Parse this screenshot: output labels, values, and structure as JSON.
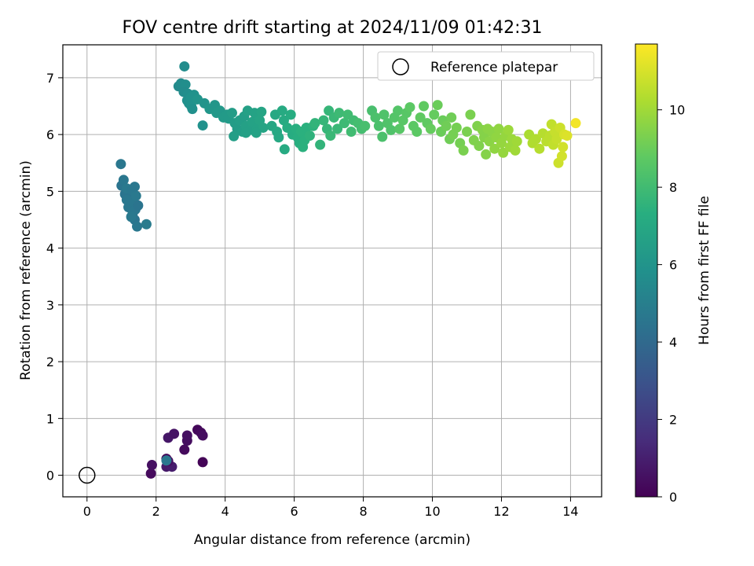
{
  "chart_data": {
    "type": "scatter",
    "title": "FOV centre drift starting at 2024/11/09 01:42:31",
    "xlabel": "Angular distance from reference (arcmin)",
    "ylabel": "Rotation from reference (arcmin)",
    "xlim": [
      -0.7,
      14.9
    ],
    "ylim": [
      -0.38,
      7.58
    ],
    "xticks": [
      0,
      2,
      4,
      6,
      8,
      10,
      12,
      14
    ],
    "yticks": [
      0,
      1,
      2,
      3,
      4,
      5,
      6,
      7
    ],
    "grid": true,
    "colormap": "viridis",
    "colorbar": {
      "label": "Hours from first FF file",
      "range": [
        0,
        11.7
      ],
      "ticks": [
        0,
        2,
        4,
        6,
        8,
        10
      ]
    },
    "legend": {
      "position": "top-right",
      "entries": [
        "Reference platepar"
      ]
    },
    "reference_point": {
      "x": 0,
      "y": 0
    },
    "points": [
      [
        1.85,
        0.03,
        0.3
      ],
      [
        1.88,
        0.18,
        0.5
      ],
      [
        2.3,
        0.15,
        0.8
      ],
      [
        2.46,
        0.15,
        0.9
      ],
      [
        2.3,
        0.29,
        0.2
      ],
      [
        2.35,
        0.25,
        0.4
      ],
      [
        2.35,
        0.66,
        0.7
      ],
      [
        2.52,
        0.73,
        0.6
      ],
      [
        2.82,
        0.45,
        0.3
      ],
      [
        2.9,
        0.61,
        0.4
      ],
      [
        2.9,
        0.7,
        0.5
      ],
      [
        3.2,
        0.8,
        0.2
      ],
      [
        3.3,
        0.75,
        0.3
      ],
      [
        3.35,
        0.7,
        0.4
      ],
      [
        3.35,
        0.23,
        0.1
      ],
      [
        2.3,
        0.26,
        4.6
      ],
      [
        0.98,
        5.48,
        4.6
      ],
      [
        1.0,
        5.1,
        4.5
      ],
      [
        1.06,
        5.2,
        4.6
      ],
      [
        1.1,
        4.95,
        4.5
      ],
      [
        1.15,
        5.05,
        4.7
      ],
      [
        1.2,
        4.72,
        4.6
      ],
      [
        1.25,
        4.88,
        4.5
      ],
      [
        1.3,
        5.02,
        4.6
      ],
      [
        1.32,
        4.6,
        4.7
      ],
      [
        1.35,
        4.8,
        4.6
      ],
      [
        1.38,
        4.5,
        4.5
      ],
      [
        1.4,
        4.68,
        4.6
      ],
      [
        1.42,
        4.92,
        4.7
      ],
      [
        1.45,
        4.38,
        4.6
      ],
      [
        1.48,
        4.75,
        4.5
      ],
      [
        1.38,
        5.08,
        4.6
      ],
      [
        1.28,
        4.55,
        4.7
      ],
      [
        1.15,
        4.85,
        4.6
      ],
      [
        1.72,
        4.42,
        4.8
      ],
      [
        2.65,
        6.85,
        5.5
      ],
      [
        2.72,
        6.9,
        5.6
      ],
      [
        2.82,
        7.2,
        5.6
      ],
      [
        2.85,
        6.88,
        5.7
      ],
      [
        2.8,
        6.75,
        5.6
      ],
      [
        2.9,
        6.6,
        5.8
      ],
      [
        2.92,
        6.72,
        5.7
      ],
      [
        2.95,
        6.55,
        5.8
      ],
      [
        3.0,
        6.65,
        5.9
      ],
      [
        3.02,
        6.5,
        5.9
      ],
      [
        3.05,
        6.45,
        5.8
      ],
      [
        3.1,
        6.7,
        5.9
      ],
      [
        3.2,
        6.62,
        6.0
      ],
      [
        3.35,
        6.16,
        5.9
      ],
      [
        3.4,
        6.55,
        6.0
      ],
      [
        3.55,
        6.45,
        6.1
      ],
      [
        3.7,
        6.52,
        6.1
      ],
      [
        3.75,
        6.38,
        6.2
      ],
      [
        3.85,
        6.42,
        6.2
      ],
      [
        3.95,
        6.3,
        6.3
      ],
      [
        4.05,
        6.35,
        6.3
      ],
      [
        4.1,
        6.28,
        6.3
      ],
      [
        4.2,
        6.38,
        6.4
      ],
      [
        4.28,
        6.2,
        6.4
      ],
      [
        4.35,
        6.1,
        6.4
      ],
      [
        4.42,
        6.25,
        6.5
      ],
      [
        4.5,
        6.05,
        6.5
      ],
      [
        4.55,
        6.32,
        6.5
      ],
      [
        4.6,
        6.15,
        6.6
      ],
      [
        4.65,
        6.42,
        6.6
      ],
      [
        4.7,
        6.08,
        6.6
      ],
      [
        4.78,
        6.22,
        6.7
      ],
      [
        4.85,
        6.38,
        6.7
      ],
      [
        4.92,
        6.1,
        6.7
      ],
      [
        5.0,
        6.25,
        6.8
      ],
      [
        5.05,
        6.4,
        6.8
      ],
      [
        5.1,
        6.12,
        6.8
      ],
      [
        4.25,
        5.97,
        6.5
      ],
      [
        4.6,
        6.03,
        6.6
      ],
      [
        4.9,
        6.03,
        6.7
      ],
      [
        5.35,
        6.15,
        6.9
      ],
      [
        5.45,
        6.35,
        7.0
      ],
      [
        5.5,
        6.05,
        7.0
      ],
      [
        5.55,
        5.95,
        7.0
      ],
      [
        5.65,
        6.42,
        7.1
      ],
      [
        5.7,
        6.25,
        7.1
      ],
      [
        5.72,
        5.74,
        7.1
      ],
      [
        5.8,
        6.12,
        7.2
      ],
      [
        5.9,
        6.35,
        7.2
      ],
      [
        5.95,
        6.0,
        7.2
      ],
      [
        6.05,
        6.1,
        7.3
      ],
      [
        6.1,
        5.95,
        7.3
      ],
      [
        6.15,
        5.85,
        7.3
      ],
      [
        6.2,
        6.05,
        7.4
      ],
      [
        6.25,
        5.78,
        7.4
      ],
      [
        6.3,
        5.9,
        7.4
      ],
      [
        6.35,
        6.12,
        7.4
      ],
      [
        6.45,
        5.98,
        7.5
      ],
      [
        6.55,
        6.15,
        7.5
      ],
      [
        6.6,
        6.2,
        7.6
      ],
      [
        6.75,
        5.82,
        7.6
      ],
      [
        6.85,
        6.25,
        7.7
      ],
      [
        6.95,
        6.1,
        7.7
      ],
      [
        7.0,
        6.42,
        7.7
      ],
      [
        7.05,
        5.98,
        7.8
      ],
      [
        7.15,
        6.3,
        7.8
      ],
      [
        7.25,
        6.1,
        7.8
      ],
      [
        7.3,
        6.38,
        7.9
      ],
      [
        7.45,
        6.2,
        7.9
      ],
      [
        7.55,
        6.35,
        8.0
      ],
      [
        7.65,
        6.05,
        8.0
      ],
      [
        7.72,
        6.25,
        8.0
      ],
      [
        7.85,
        6.2,
        8.1
      ],
      [
        7.95,
        6.1,
        8.1
      ],
      [
        8.05,
        6.15,
        8.2
      ],
      [
        8.25,
        6.42,
        8.2
      ],
      [
        8.35,
        6.3,
        8.3
      ],
      [
        8.45,
        6.15,
        8.3
      ],
      [
        8.55,
        5.96,
        8.3
      ],
      [
        8.6,
        6.35,
        8.4
      ],
      [
        8.7,
        6.2,
        8.4
      ],
      [
        8.8,
        6.08,
        8.4
      ],
      [
        8.9,
        6.3,
        8.5
      ],
      [
        9.0,
        6.42,
        8.5
      ],
      [
        9.05,
        6.1,
        8.6
      ],
      [
        9.15,
        6.25,
        8.6
      ],
      [
        9.25,
        6.38,
        8.6
      ],
      [
        9.35,
        6.48,
        8.7
      ],
      [
        9.45,
        6.15,
        8.7
      ],
      [
        9.55,
        6.05,
        8.7
      ],
      [
        9.65,
        6.3,
        8.8
      ],
      [
        9.75,
        6.5,
        8.8
      ],
      [
        9.85,
        6.2,
        8.8
      ],
      [
        9.95,
        6.1,
        8.9
      ],
      [
        10.05,
        6.35,
        8.9
      ],
      [
        10.15,
        6.52,
        9.0
      ],
      [
        10.25,
        6.05,
        9.0
      ],
      [
        10.3,
        6.25,
        9.0
      ],
      [
        10.4,
        6.15,
        9.1
      ],
      [
        10.5,
        5.92,
        9.1
      ],
      [
        10.55,
        6.3,
        9.1
      ],
      [
        10.6,
        6.0,
        9.2
      ],
      [
        10.7,
        6.12,
        9.2
      ],
      [
        10.8,
        5.85,
        9.2
      ],
      [
        10.9,
        5.72,
        9.3
      ],
      [
        11.0,
        6.05,
        9.3
      ],
      [
        11.1,
        6.35,
        9.3
      ],
      [
        11.2,
        5.9,
        9.4
      ],
      [
        11.3,
        6.15,
        9.4
      ],
      [
        11.35,
        5.8,
        9.4
      ],
      [
        11.45,
        6.08,
        9.5
      ],
      [
        11.5,
        5.95,
        9.5
      ],
      [
        11.55,
        5.65,
        9.5
      ],
      [
        11.6,
        6.1,
        9.6
      ],
      [
        11.65,
        5.88,
        9.6
      ],
      [
        11.72,
        6.05,
        9.6
      ],
      [
        11.8,
        5.75,
        9.7
      ],
      [
        11.85,
        5.95,
        9.7
      ],
      [
        11.92,
        6.1,
        9.7
      ],
      [
        12.0,
        5.85,
        9.8
      ],
      [
        12.05,
        5.68,
        9.8
      ],
      [
        12.12,
        5.98,
        9.8
      ],
      [
        12.2,
        6.08,
        9.9
      ],
      [
        12.25,
        5.78,
        9.9
      ],
      [
        12.3,
        5.92,
        9.9
      ],
      [
        12.4,
        5.72,
        10.0
      ],
      [
        12.45,
        5.88,
        10.0
      ],
      [
        12.8,
        6.0,
        10.2
      ],
      [
        12.9,
        5.85,
        10.3
      ],
      [
        13.0,
        5.92,
        10.3
      ],
      [
        13.1,
        5.75,
        10.4
      ],
      [
        13.2,
        6.02,
        10.4
      ],
      [
        13.3,
        5.88,
        10.5
      ],
      [
        13.4,
        5.98,
        10.5
      ],
      [
        13.45,
        6.18,
        10.6
      ],
      [
        13.5,
        5.82,
        10.6
      ],
      [
        13.55,
        6.05,
        10.7
      ],
      [
        13.6,
        5.92,
        10.7
      ],
      [
        13.65,
        5.5,
        10.8
      ],
      [
        13.7,
        6.12,
        10.8
      ],
      [
        13.75,
        5.62,
        10.9
      ],
      [
        13.78,
        5.78,
        10.9
      ],
      [
        13.82,
        6.0,
        11.0
      ],
      [
        13.9,
        5.98,
        11.1
      ],
      [
        14.15,
        6.2,
        11.5
      ]
    ]
  }
}
